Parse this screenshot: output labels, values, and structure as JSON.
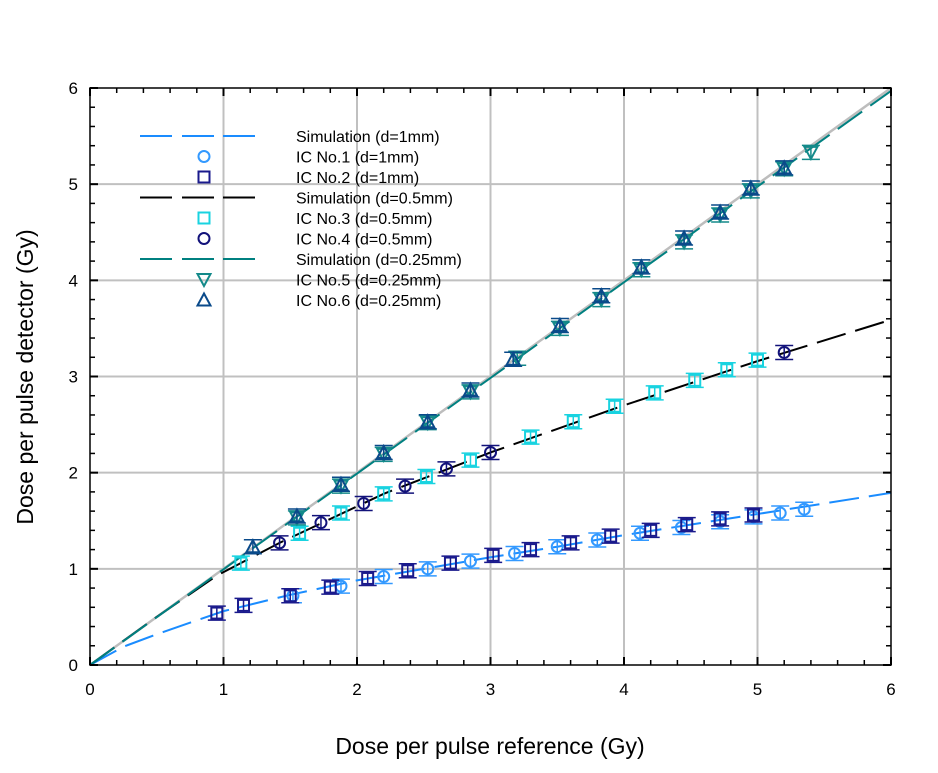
{
  "chart_data": {
    "type": "scatter",
    "title": "",
    "xlabel": "Dose per pulse reference (Gy)",
    "ylabel": "Dose per pulse detector (Gy)",
    "xlim": [
      0,
      6
    ],
    "ylim": [
      0,
      6
    ],
    "xticks": [
      "0",
      "1",
      "2",
      "3",
      "4",
      "5",
      "6"
    ],
    "yticks": [
      "0",
      "1",
      "2",
      "3",
      "4",
      "5",
      "6"
    ],
    "grid": true,
    "legend_placement": "top-left",
    "identity_line": {
      "x": [
        0,
        6
      ],
      "y": [
        0,
        6
      ],
      "color": "#bdbdbd"
    },
    "series": [
      {
        "name": "Simulation (d=1mm)",
        "kind": "line",
        "color": "#1a8cff",
        "x": [
          0,
          0.25,
          0.5,
          1,
          1.5,
          2,
          2.5,
          3,
          3.5,
          4,
          4.5,
          5,
          5.5,
          6
        ],
        "y": [
          0,
          0.19,
          0.32,
          0.56,
          0.73,
          0.88,
          1.0,
          1.12,
          1.23,
          1.35,
          1.46,
          1.57,
          1.68,
          1.79
        ]
      },
      {
        "name": "IC No.1 (d=1mm)",
        "kind": "marker",
        "marker": "circle",
        "color": "#3399ff",
        "x": [
          1.52,
          1.88,
          2.2,
          2.53,
          2.85,
          3.18,
          3.5,
          3.8,
          4.12,
          4.43,
          4.72,
          4.97,
          5.17,
          5.35
        ],
        "y": [
          0.72,
          0.82,
          0.92,
          1.0,
          1.08,
          1.16,
          1.23,
          1.3,
          1.37,
          1.43,
          1.49,
          1.54,
          1.58,
          1.62
        ]
      },
      {
        "name": "IC No.2 (d=1mm)",
        "kind": "marker",
        "marker": "square",
        "color": "#1a1a8c",
        "x": [
          0.95,
          1.15,
          1.5,
          1.8,
          2.08,
          2.38,
          2.7,
          3.02,
          3.3,
          3.6,
          3.9,
          4.2,
          4.47,
          4.72,
          4.97
        ],
        "y": [
          0.54,
          0.62,
          0.72,
          0.81,
          0.9,
          0.98,
          1.06,
          1.14,
          1.2,
          1.27,
          1.34,
          1.4,
          1.46,
          1.52,
          1.56
        ]
      },
      {
        "name": "Simulation (d=0.5mm)",
        "kind": "line",
        "color": "#000000",
        "x": [
          0,
          0.5,
          0.95,
          1.42,
          2.2,
          3,
          4,
          5,
          6
        ],
        "y": [
          0,
          0.5,
          0.93,
          1.27,
          1.78,
          2.21,
          2.7,
          3.16,
          3.59
        ]
      },
      {
        "name": "IC No.3 (d=0.5mm)",
        "kind": "marker",
        "marker": "square",
        "color": "#19d3e0",
        "x": [
          1.13,
          1.57,
          1.88,
          2.2,
          2.52,
          2.85,
          3.3,
          3.62,
          3.93,
          4.23,
          4.53,
          4.77,
          5.0
        ],
        "y": [
          1.06,
          1.37,
          1.58,
          1.78,
          1.96,
          2.13,
          2.37,
          2.53,
          2.69,
          2.83,
          2.96,
          3.07,
          3.17
        ]
      },
      {
        "name": "IC No.4 (d=0.5mm)",
        "kind": "marker",
        "marker": "circle",
        "color": "#12127a",
        "x": [
          1.42,
          1.73,
          2.05,
          2.36,
          2.67,
          3.0,
          5.2
        ],
        "y": [
          1.27,
          1.48,
          1.68,
          1.86,
          2.04,
          2.21,
          3.25
        ]
      },
      {
        "name": "Simulation (d=0.25mm)",
        "kind": "line",
        "color": "#008080",
        "x": [
          0,
          6
        ],
        "y": [
          0,
          5.97
        ]
      },
      {
        "name": "IC No.5 (d=0.25mm)",
        "kind": "marker",
        "marker": "triangle-down",
        "color": "#148a8a",
        "x": [
          1.55,
          1.88,
          2.2,
          2.53,
          2.85,
          3.2,
          3.52,
          3.83,
          4.13,
          4.45,
          4.72,
          4.95,
          5.2,
          5.4
        ],
        "y": [
          1.53,
          1.86,
          2.19,
          2.52,
          2.84,
          3.19,
          3.5,
          3.8,
          4.11,
          4.4,
          4.68,
          4.93,
          5.16,
          5.33
        ]
      },
      {
        "name": "IC No.6 (d=0.25mm)",
        "kind": "marker",
        "marker": "triangle-up",
        "color": "#0a4a8a",
        "x": [
          1.22,
          1.55,
          1.88,
          2.2,
          2.53,
          2.85,
          3.17,
          3.52,
          3.83,
          4.13,
          4.45,
          4.72,
          4.95,
          5.2
        ],
        "y": [
          1.23,
          1.55,
          1.88,
          2.21,
          2.53,
          2.86,
          3.18,
          3.53,
          3.84,
          4.14,
          4.44,
          4.71,
          4.96,
          5.17
        ]
      }
    ]
  }
}
